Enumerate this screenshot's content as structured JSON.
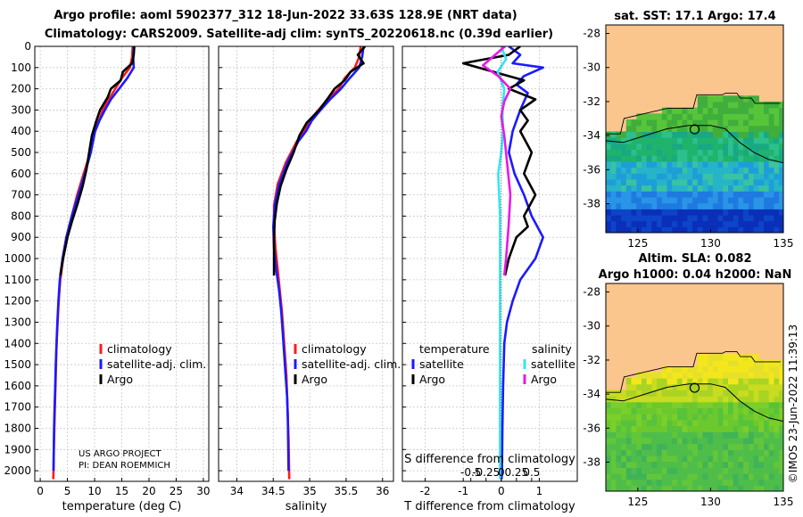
{
  "header": {
    "line1": "Argo profile: aoml 5902377_312 18-Jun-2022 33.63S 128.9E (NRT data)",
    "line2": "Climatology: CARS2009. Satellite-adj clim: synTS_20220618.nc (0.39d earlier)"
  },
  "credit": {
    "project": "US ARGO PROJECT",
    "pi": "PI: DEAN ROEMMICH"
  },
  "watermark": "©IMOS 23-Jun-2022 11:39:13",
  "colors": {
    "climatology": "#ff1a1a",
    "satellite_adj": "#1a1aff",
    "argo": "#000000",
    "s_satellite": "#33e6f0",
    "s_argo": "#e61ae6",
    "land": "#fbc58e",
    "contour": "#000000"
  },
  "chart_data": [
    {
      "id": "temperature",
      "type": "line",
      "xlabel": "temperature (deg C)",
      "xlim": [
        -1,
        31
      ],
      "xticks": [
        0,
        5,
        10,
        15,
        20,
        25,
        30
      ],
      "ylim": [
        0,
        2050
      ],
      "yticks": [
        0,
        100,
        200,
        300,
        400,
        500,
        600,
        700,
        800,
        900,
        1000,
        1100,
        1200,
        1300,
        1400,
        1500,
        1600,
        1700,
        1800,
        1900,
        2000
      ],
      "legend": [
        "climatology",
        "satellite-adj. clim.",
        "Argo"
      ],
      "series": [
        {
          "name": "climatology",
          "x": [
            17.0,
            16.9,
            16.5,
            15.0,
            13.8,
            12.6,
            11.5,
            10.8,
            10.0,
            9.2,
            8.0,
            6.8,
            5.8,
            4.9,
            4.2,
            3.7,
            3.4,
            3.2,
            3.0,
            2.9,
            2.8,
            2.7,
            2.6,
            2.5,
            2.45,
            2.4
          ],
          "depth": [
            0,
            50,
            100,
            150,
            200,
            250,
            300,
            350,
            400,
            500,
            600,
            700,
            800,
            900,
            1000,
            1100,
            1200,
            1300,
            1400,
            1500,
            1600,
            1700,
            1800,
            1900,
            2000,
            2040
          ]
        },
        {
          "name": "satellite-adj. clim.",
          "x": [
            17.2,
            17.1,
            17.2,
            16.0,
            14.5,
            13.0,
            11.9,
            10.9,
            10.1,
            9.3,
            8.2,
            7.0,
            5.8,
            4.8,
            4.1,
            3.6,
            3.35,
            3.15,
            3.0,
            2.85,
            2.75,
            2.65,
            2.55,
            2.5,
            2.45
          ],
          "depth": [
            0,
            50,
            100,
            150,
            200,
            250,
            300,
            350,
            400,
            500,
            600,
            700,
            800,
            900,
            1000,
            1100,
            1200,
            1300,
            1400,
            1500,
            1600,
            1700,
            1800,
            1900,
            2000
          ]
        },
        {
          "name": "Argo",
          "x": [
            17.3,
            17.2,
            16.9,
            15.2,
            14.8,
            13.0,
            12.4,
            11.0,
            10.2,
            9.5,
            9.0,
            8.5,
            7.8,
            6.9,
            5.9,
            5.0,
            4.2,
            3.7
          ],
          "depth": [
            0,
            40,
            80,
            120,
            160,
            200,
            240,
            300,
            360,
            420,
            500,
            580,
            660,
            740,
            820,
            900,
            1000,
            1080
          ]
        }
      ]
    },
    {
      "id": "salinity",
      "type": "line",
      "xlabel": "salinity",
      "xlim": [
        33.75,
        36.15
      ],
      "xticks": [
        34,
        34.5,
        35,
        35.5,
        36
      ],
      "ylim": [
        0,
        2050
      ],
      "legend": [
        "climatology",
        "satellite-adj. clim.",
        "Argo"
      ],
      "series": [
        {
          "name": "climatology",
          "x": [
            35.7,
            35.68,
            35.62,
            35.48,
            35.4,
            35.25,
            35.12,
            35.0,
            34.92,
            34.82,
            34.67,
            34.56,
            34.51,
            34.51,
            34.53,
            34.56,
            34.59,
            34.62,
            34.64,
            34.66,
            34.68,
            34.69,
            34.7,
            34.71,
            34.72
          ],
          "depth": [
            0,
            50,
            100,
            150,
            200,
            250,
            300,
            350,
            400,
            450,
            550,
            650,
            750,
            850,
            950,
            1050,
            1150,
            1250,
            1350,
            1450,
            1550,
            1650,
            1750,
            1850,
            2040
          ]
        },
        {
          "name": "satellite-adj. clim.",
          "x": [
            35.74,
            35.72,
            35.68,
            35.55,
            35.43,
            35.28,
            35.15,
            35.03,
            34.95,
            34.84,
            34.69,
            34.58,
            34.52,
            34.5,
            34.51,
            34.54,
            34.58,
            34.61,
            34.63,
            34.65,
            34.67,
            34.69,
            34.7,
            34.71
          ],
          "depth": [
            0,
            50,
            100,
            150,
            200,
            250,
            300,
            350,
            400,
            450,
            550,
            650,
            750,
            850,
            950,
            1050,
            1150,
            1250,
            1350,
            1450,
            1550,
            1650,
            1750,
            2000
          ]
        },
        {
          "name": "Argo",
          "x": [
            35.76,
            35.66,
            35.74,
            35.56,
            35.48,
            35.34,
            35.26,
            35.13,
            34.96,
            34.86,
            34.78,
            34.68,
            34.6,
            34.55,
            34.52,
            34.51,
            34.51
          ],
          "depth": [
            0,
            40,
            80,
            120,
            160,
            200,
            240,
            300,
            360,
            420,
            500,
            580,
            660,
            740,
            820,
            900,
            1080
          ]
        }
      ]
    },
    {
      "id": "difference",
      "type": "line",
      "xlabel": "T difference from climatology",
      "xlabel_top": "S difference from climatology",
      "xlim": [
        -2.6,
        2.0
      ],
      "xticks": [
        -2,
        -1,
        0,
        1
      ],
      "xtick_labels": [
        "-2",
        "-1",
        "0",
        "1"
      ],
      "sticks": [
        -0.5,
        -0.25,
        0,
        0.25,
        0.5
      ],
      "stick_labels": [
        "-0.5",
        "-0.25",
        "0",
        "0.25",
        "0.5"
      ],
      "ylim": [
        0,
        2050
      ],
      "legend_t_title": "temperature",
      "legend_s_title": "salinity",
      "legend_t": [
        "satellite",
        "Argo"
      ],
      "legend_s": [
        "satellite",
        "Argo"
      ],
      "series": [
        {
          "name": "T satellite",
          "x": [
            0.2,
            0.5,
            0.3,
            1.1,
            0.6,
            0.4,
            0.7,
            0.5,
            0.3,
            0.2,
            0.35,
            0.6,
            0.8,
            1.1,
            0.9,
            0.5,
            0.3,
            0.15,
            0.08,
            0.05,
            0.03,
            0.02,
            0.01
          ],
          "depth": [
            0,
            40,
            80,
            100,
            140,
            180,
            220,
            300,
            400,
            500,
            600,
            700,
            800,
            900,
            1000,
            1100,
            1200,
            1300,
            1400,
            1600,
            1800,
            2000,
            2040
          ]
        },
        {
          "name": "T Argo",
          "x": [
            0.5,
            0.2,
            -1.0,
            -0.2,
            0.6,
            0.2,
            0.9,
            0.5,
            0.7,
            0.5,
            0.8,
            0.6,
            0.9,
            0.6,
            0.7,
            0.4,
            0.2,
            0.1
          ],
          "depth": [
            0,
            40,
            80,
            120,
            160,
            200,
            250,
            300,
            350,
            400,
            500,
            600,
            700,
            800,
            850,
            900,
            1000,
            1080
          ]
        },
        {
          "name": "S satellite",
          "x": [
            0.0,
            0.08,
            -0.06,
            0.05,
            0.02,
            0.03,
            0.0,
            -0.05,
            -0.02,
            -0.02,
            -0.02,
            -0.02,
            -0.02,
            -0.02
          ],
          "depth": [
            0,
            60,
            120,
            200,
            300,
            400,
            500,
            600,
            800,
            1100,
            1300,
            1600,
            1900,
            2040
          ]
        },
        {
          "name": "S Argo",
          "x": [
            0.06,
            -0.1,
            -0.3,
            -0.05,
            0.15,
            0.05,
            0.0,
            0.05,
            0.1,
            0.15,
            0.12,
            0.08,
            0.05
          ],
          "depth": [
            0,
            40,
            90,
            140,
            200,
            260,
            330,
            420,
            560,
            700,
            850,
            1000,
            1080
          ]
        }
      ]
    },
    {
      "id": "sst_map",
      "type": "heatmap",
      "title": "sat. SST: 17.1 Argo: 17.4",
      "xlim": [
        122.8,
        135.0
      ],
      "ylim": [
        -39.7,
        -27.5
      ],
      "xticks": [
        125,
        130,
        135
      ],
      "yticks": [
        -28,
        -30,
        -32,
        -34,
        -36,
        -38
      ],
      "profile_location": {
        "lon": 128.9,
        "lat": -33.63
      }
    },
    {
      "id": "sla_map",
      "type": "heatmap",
      "title_line1": "Altim. SLA: 0.082",
      "title_line2": "Argo h1000: 0.04 h2000: NaN",
      "xlim": [
        122.8,
        135.0
      ],
      "ylim": [
        -39.7,
        -27.5
      ],
      "xticks": [
        125,
        130,
        135
      ],
      "yticks": [
        -28,
        -30,
        -32,
        -34,
        -36,
        -38
      ],
      "profile_location": {
        "lon": 128.9,
        "lat": -33.63
      }
    }
  ]
}
